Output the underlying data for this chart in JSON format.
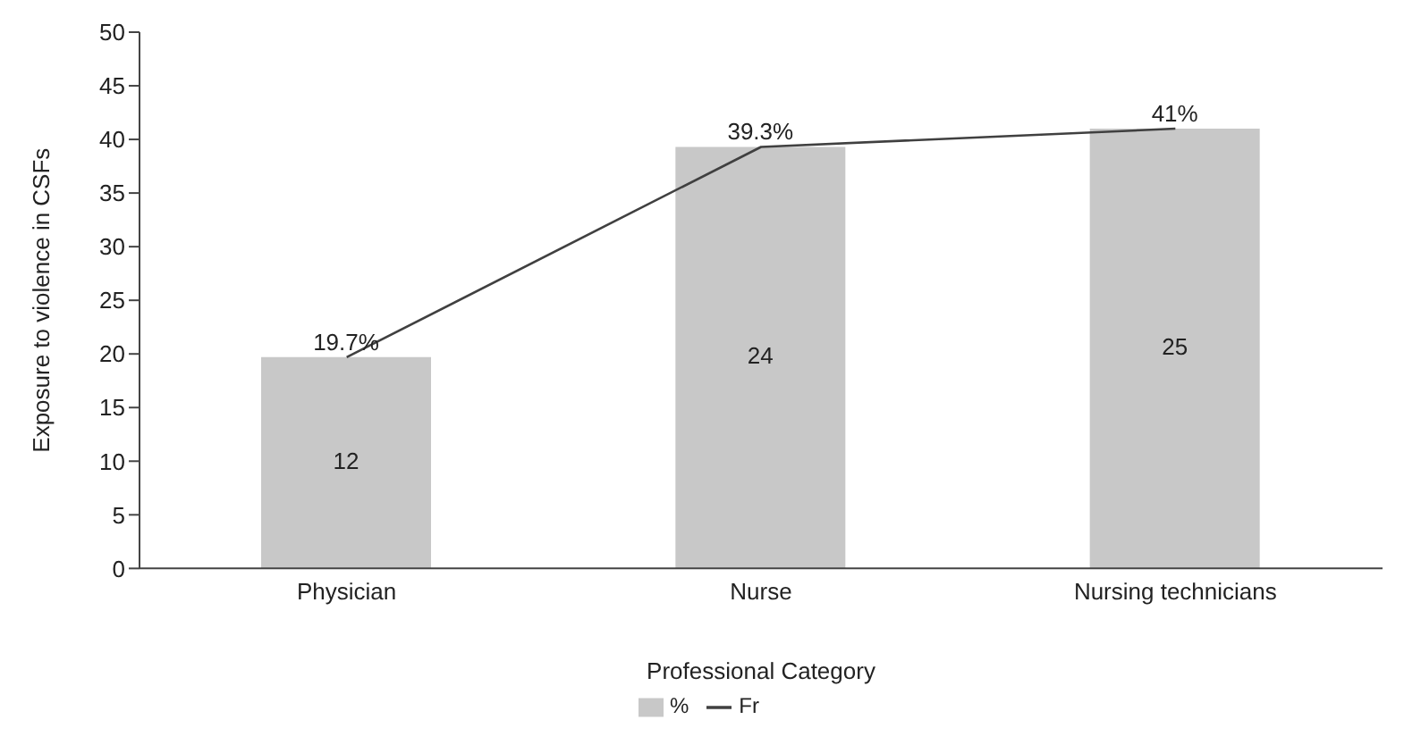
{
  "chart_data": {
    "type": "bar",
    "xlabel": "Professional Category",
    "ylabel": "Exposure to violence in CSFs",
    "categories": [
      "Physician",
      "Nurse",
      "Nursing technicians"
    ],
    "series": [
      {
        "name": "%",
        "color": "#c8c8c8",
        "values": [
          19.7,
          39.3,
          41
        ],
        "value_labels": [
          "19.7%",
          "39.3%",
          "41%"
        ]
      },
      {
        "name": "Fr",
        "type": "line",
        "color": "#404040",
        "values": [
          19.7,
          39.3,
          41
        ]
      }
    ],
    "annotations": [
      "12",
      "24",
      "25"
    ],
    "ylim": [
      0,
      50
    ],
    "yticks": [
      0,
      5,
      10,
      15,
      20,
      25,
      30,
      35,
      40,
      45,
      50
    ],
    "grid": false,
    "legend": "bottom",
    "marker": "none"
  }
}
